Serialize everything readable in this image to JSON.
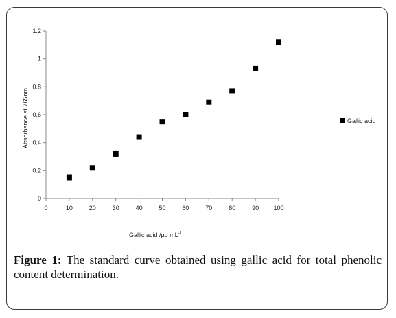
{
  "chart_data": {
    "type": "scatter",
    "title": "",
    "xlabel": "Gallic acid /µg mL",
    "xlabel_sup": "-1",
    "ylabel": "Absorbance at 765nm",
    "xlim": [
      0,
      100
    ],
    "ylim": [
      0,
      1.2
    ],
    "xticks": [
      "0",
      "10",
      "20",
      "30",
      "40",
      "50",
      "60",
      "70",
      "80",
      "90",
      "100"
    ],
    "yticks": [
      "0",
      "0.2",
      "0.4",
      "0.6",
      "0.8",
      "1",
      "1.2"
    ],
    "grid": false,
    "legend_position": "right",
    "series": [
      {
        "name": "Gallic acid",
        "color": "#000000",
        "marker": "square",
        "x": [
          10,
          20,
          30,
          40,
          50,
          60,
          70,
          80,
          90,
          100
        ],
        "y": [
          0.15,
          0.22,
          0.32,
          0.44,
          0.55,
          0.6,
          0.69,
          0.77,
          0.93,
          1.12
        ]
      }
    ]
  },
  "caption": {
    "label": "Figure 1:",
    "text": " The standard curve obtained using gallic acid for total phenolic content determination."
  }
}
